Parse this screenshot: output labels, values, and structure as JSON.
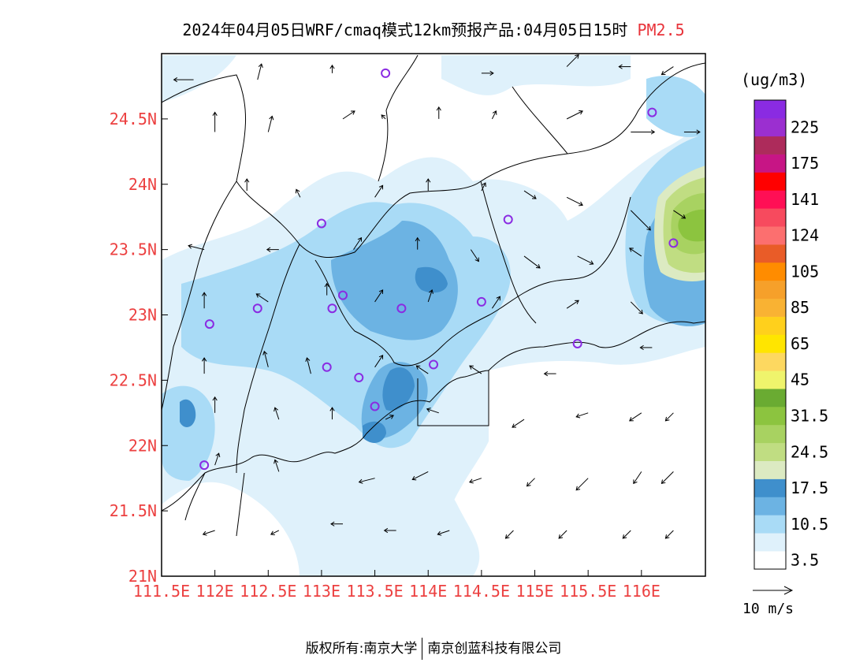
{
  "title": {
    "main": "2024年04月05日WRF/cmaq模式12km预报产品:04月05日15时",
    "variable": "PM2.5"
  },
  "footer": {
    "copyright": "版权所有:南京大学",
    "company": "南京创蓝科技有限公司"
  },
  "map": {
    "lon_range": [
      111.5,
      116.6
    ],
    "lat_range": [
      21.0,
      25.0
    ],
    "lon_ticks": [
      {
        "value": 111.5,
        "label": "111.5E"
      },
      {
        "value": 112.0,
        "label": "112E"
      },
      {
        "value": 112.5,
        "label": "112.5E"
      },
      {
        "value": 113.0,
        "label": "113E"
      },
      {
        "value": 113.5,
        "label": "113.5E"
      },
      {
        "value": 114.0,
        "label": "114E"
      },
      {
        "value": 114.5,
        "label": "114.5E"
      },
      {
        "value": 115.0,
        "label": "115E"
      },
      {
        "value": 115.5,
        "label": "115.5E"
      },
      {
        "value": 116.0,
        "label": "116E"
      }
    ],
    "lat_ticks": [
      {
        "value": 21.0,
        "label": "21N"
      },
      {
        "value": 21.5,
        "label": "21.5N"
      },
      {
        "value": 22.0,
        "label": "22N"
      },
      {
        "value": 22.5,
        "label": "22.5N"
      },
      {
        "value": 23.0,
        "label": "23N"
      },
      {
        "value": 23.5,
        "label": "23.5N"
      },
      {
        "value": 24.0,
        "label": "24N"
      },
      {
        "value": 24.5,
        "label": "24.5N"
      }
    ],
    "stations": [
      {
        "lon": 113.6,
        "lat": 24.85
      },
      {
        "lon": 116.1,
        "lat": 24.55
      },
      {
        "lon": 113.0,
        "lat": 23.7
      },
      {
        "lon": 114.75,
        "lat": 23.73
      },
      {
        "lon": 116.3,
        "lat": 23.55
      },
      {
        "lon": 113.2,
        "lat": 23.15
      },
      {
        "lon": 112.4,
        "lat": 23.05
      },
      {
        "lon": 113.1,
        "lat": 23.05
      },
      {
        "lon": 113.75,
        "lat": 23.05
      },
      {
        "lon": 114.5,
        "lat": 23.1
      },
      {
        "lon": 111.95,
        "lat": 22.93
      },
      {
        "lon": 115.4,
        "lat": 22.78
      },
      {
        "lon": 113.05,
        "lat": 22.6
      },
      {
        "lon": 113.35,
        "lat": 22.52
      },
      {
        "lon": 114.05,
        "lat": 22.62
      },
      {
        "lon": 113.5,
        "lat": 22.3
      },
      {
        "lon": 111.9,
        "lat": 21.85
      }
    ],
    "wind": [
      {
        "lon": 111.8,
        "lat": 24.8,
        "u": -5,
        "v": 0
      },
      {
        "lon": 112.4,
        "lat": 24.8,
        "u": 1,
        "v": 4
      },
      {
        "lon": 113.1,
        "lat": 24.85,
        "u": 0,
        "v": 2
      },
      {
        "lon": 114.5,
        "lat": 24.85,
        "u": 3,
        "v": 0
      },
      {
        "lon": 115.3,
        "lat": 24.9,
        "u": 3,
        "v": 3
      },
      {
        "lon": 115.9,
        "lat": 24.9,
        "u": -3,
        "v": 0
      },
      {
        "lon": 116.3,
        "lat": 24.9,
        "u": -3,
        "v": -2
      },
      {
        "lon": 112.0,
        "lat": 24.4,
        "u": 0,
        "v": 5
      },
      {
        "lon": 112.5,
        "lat": 24.4,
        "u": 1,
        "v": 4
      },
      {
        "lon": 113.2,
        "lat": 24.5,
        "u": 3,
        "v": 2
      },
      {
        "lon": 113.6,
        "lat": 24.5,
        "u": -1,
        "v": 1
      },
      {
        "lon": 114.1,
        "lat": 24.5,
        "u": 0,
        "v": 3
      },
      {
        "lon": 114.6,
        "lat": 24.5,
        "u": 1,
        "v": 2
      },
      {
        "lon": 115.3,
        "lat": 24.5,
        "u": 4,
        "v": 2
      },
      {
        "lon": 115.9,
        "lat": 24.4,
        "u": 6,
        "v": 0
      },
      {
        "lon": 116.4,
        "lat": 24.4,
        "u": 4,
        "v": 0
      },
      {
        "lon": 112.3,
        "lat": 23.95,
        "u": 0,
        "v": 3
      },
      {
        "lon": 112.8,
        "lat": 23.9,
        "u": -1,
        "v": 2
      },
      {
        "lon": 113.5,
        "lat": 23.9,
        "u": 2,
        "v": 3
      },
      {
        "lon": 114.0,
        "lat": 23.95,
        "u": 0,
        "v": 3
      },
      {
        "lon": 114.5,
        "lat": 23.95,
        "u": 1,
        "v": 2
      },
      {
        "lon": 114.9,
        "lat": 23.95,
        "u": 3,
        "v": -2
      },
      {
        "lon": 115.3,
        "lat": 23.9,
        "u": 4,
        "v": -2
      },
      {
        "lon": 115.9,
        "lat": 23.8,
        "u": 5,
        "v": -5
      },
      {
        "lon": 116.3,
        "lat": 23.8,
        "u": 3,
        "v": -2
      },
      {
        "lon": 111.9,
        "lat": 23.5,
        "u": -4,
        "v": 1
      },
      {
        "lon": 112.6,
        "lat": 23.5,
        "u": -3,
        "v": 0
      },
      {
        "lon": 113.3,
        "lat": 23.5,
        "u": 2,
        "v": 3
      },
      {
        "lon": 113.9,
        "lat": 23.5,
        "u": 0,
        "v": 3
      },
      {
        "lon": 114.4,
        "lat": 23.5,
        "u": 2,
        "v": -3
      },
      {
        "lon": 114.9,
        "lat": 23.45,
        "u": 4,
        "v": -3
      },
      {
        "lon": 115.4,
        "lat": 23.45,
        "u": 4,
        "v": -2
      },
      {
        "lon": 116.0,
        "lat": 23.45,
        "u": -3,
        "v": 2
      },
      {
        "lon": 111.9,
        "lat": 23.05,
        "u": 0,
        "v": 4
      },
      {
        "lon": 112.5,
        "lat": 23.1,
        "u": -3,
        "v": 2
      },
      {
        "lon": 113.05,
        "lat": 23.15,
        "u": 0,
        "v": 3
      },
      {
        "lon": 113.5,
        "lat": 23.1,
        "u": 2,
        "v": 3
      },
      {
        "lon": 114.0,
        "lat": 23.1,
        "u": 1,
        "v": 3
      },
      {
        "lon": 114.6,
        "lat": 23.05,
        "u": 2,
        "v": 3
      },
      {
        "lon": 115.3,
        "lat": 23.05,
        "u": 3,
        "v": 2
      },
      {
        "lon": 115.9,
        "lat": 23.1,
        "u": 3,
        "v": -3
      },
      {
        "lon": 111.9,
        "lat": 22.55,
        "u": 0,
        "v": 4
      },
      {
        "lon": 112.5,
        "lat": 22.6,
        "u": -1,
        "v": 4
      },
      {
        "lon": 112.9,
        "lat": 22.55,
        "u": -1,
        "v": 4
      },
      {
        "lon": 113.5,
        "lat": 22.6,
        "u": 2,
        "v": 3
      },
      {
        "lon": 114.0,
        "lat": 22.55,
        "u": -3,
        "v": 2
      },
      {
        "lon": 114.5,
        "lat": 22.55,
        "u": -3,
        "v": 2
      },
      {
        "lon": 115.2,
        "lat": 22.55,
        "u": -3,
        "v": 0
      },
      {
        "lon": 116.1,
        "lat": 22.75,
        "u": -3,
        "v": 0
      },
      {
        "lon": 112.0,
        "lat": 22.25,
        "u": 0,
        "v": 4
      },
      {
        "lon": 112.6,
        "lat": 22.2,
        "u": -1,
        "v": 3
      },
      {
        "lon": 113.1,
        "lat": 22.2,
        "u": 0,
        "v": 3
      },
      {
        "lon": 113.6,
        "lat": 22.2,
        "u": 2,
        "v": 1
      },
      {
        "lon": 114.1,
        "lat": 22.25,
        "u": -3,
        "v": 1
      },
      {
        "lon": 114.9,
        "lat": 22.2,
        "u": -3,
        "v": -2
      },
      {
        "lon": 115.5,
        "lat": 22.25,
        "u": -3,
        "v": -1
      },
      {
        "lon": 116.0,
        "lat": 22.25,
        "u": -3,
        "v": -2
      },
      {
        "lon": 116.3,
        "lat": 22.25,
        "u": -2,
        "v": -2
      },
      {
        "lon": 112.0,
        "lat": 21.85,
        "u": 1,
        "v": 3
      },
      {
        "lon": 112.6,
        "lat": 21.8,
        "u": -1,
        "v": 3
      },
      {
        "lon": 113.5,
        "lat": 21.75,
        "u": -4,
        "v": -1
      },
      {
        "lon": 114.0,
        "lat": 21.8,
        "u": -4,
        "v": -2
      },
      {
        "lon": 114.5,
        "lat": 21.75,
        "u": -3,
        "v": -1
      },
      {
        "lon": 115.0,
        "lat": 21.75,
        "u": -2,
        "v": -2
      },
      {
        "lon": 115.5,
        "lat": 21.75,
        "u": -3,
        "v": -3
      },
      {
        "lon": 116.0,
        "lat": 21.8,
        "u": -2,
        "v": -3
      },
      {
        "lon": 116.3,
        "lat": 21.8,
        "u": -3,
        "v": -3
      },
      {
        "lon": 112.0,
        "lat": 21.35,
        "u": -3,
        "v": -1
      },
      {
        "lon": 112.6,
        "lat": 21.35,
        "u": -2,
        "v": -1
      },
      {
        "lon": 113.2,
        "lat": 21.4,
        "u": -3,
        "v": 0
      },
      {
        "lon": 113.7,
        "lat": 21.35,
        "u": -3,
        "v": 0
      },
      {
        "lon": 114.2,
        "lat": 21.35,
        "u": -3,
        "v": -1
      },
      {
        "lon": 114.8,
        "lat": 21.35,
        "u": -2,
        "v": -2
      },
      {
        "lon": 115.3,
        "lat": 21.35,
        "u": -2,
        "v": -2
      },
      {
        "lon": 115.9,
        "lat": 21.35,
        "u": -2,
        "v": -2
      },
      {
        "lon": 116.3,
        "lat": 21.35,
        "u": -2,
        "v": -2
      }
    ]
  },
  "legend": {
    "unit": "(ug/m3)",
    "bins": [
      {
        "color": "#ffffff",
        "label": "3.5"
      },
      {
        "color": "#dff1fb",
        "label": ""
      },
      {
        "color": "#a9dbf6",
        "label": "10.5"
      },
      {
        "color": "#6cb3e3",
        "label": ""
      },
      {
        "color": "#3f8fcc",
        "label": "17.5"
      },
      {
        "color": "#dceac2",
        "label": ""
      },
      {
        "color": "#c0dd82",
        "label": "24.5"
      },
      {
        "color": "#a8d261",
        "label": ""
      },
      {
        "color": "#8cc43f",
        "label": "31.5"
      },
      {
        "color": "#6aab32",
        "label": ""
      },
      {
        "color": "#eff46c",
        "label": "45"
      },
      {
        "color": "#fdd860",
        "label": ""
      },
      {
        "color": "#ffe500",
        "label": "65"
      },
      {
        "color": "#ffd01c",
        "label": ""
      },
      {
        "color": "#f9b233",
        "label": "85"
      },
      {
        "color": "#f6a02a",
        "label": ""
      },
      {
        "color": "#ff8c00",
        "label": "105"
      },
      {
        "color": "#e95c28",
        "label": ""
      },
      {
        "color": "#fc6f6f",
        "label": "124"
      },
      {
        "color": "#f74a5e",
        "label": ""
      },
      {
        "color": "#ff0f55",
        "label": "141"
      },
      {
        "color": "#ff0000",
        "label": ""
      },
      {
        "color": "#c71585",
        "label": "175"
      },
      {
        "color": "#ad2b5b",
        "label": ""
      },
      {
        "color": "#9b2fd0",
        "label": "225"
      },
      {
        "color": "#8a2be2",
        "label": ""
      }
    ]
  },
  "wind_key": {
    "label": "10 m/s"
  }
}
